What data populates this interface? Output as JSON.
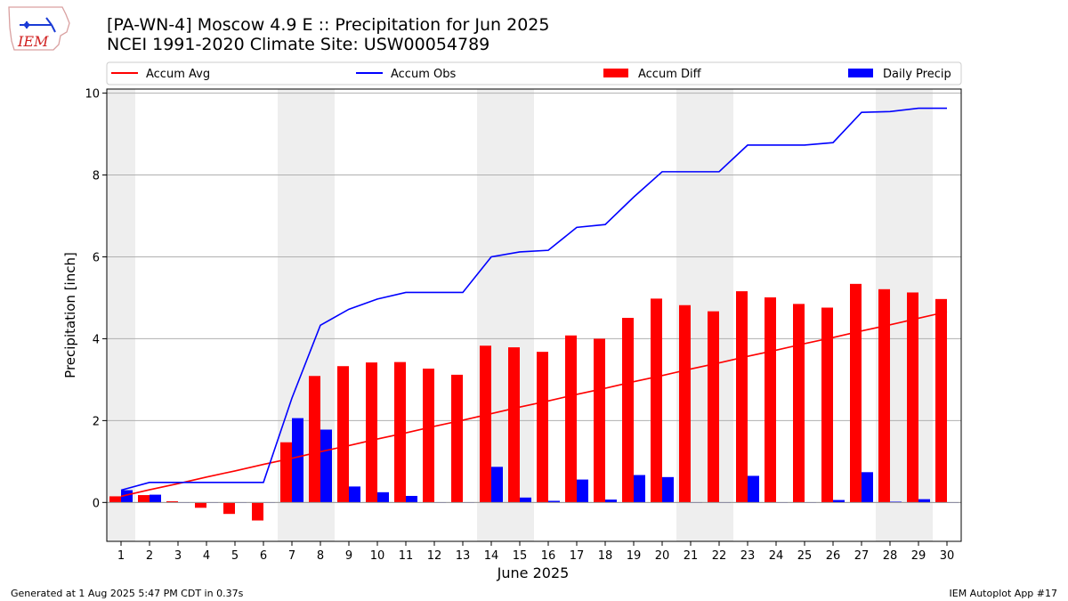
{
  "header": {
    "title_line1": "[PA-WN-4] Moscow 4.9 E :: Precipitation for Jun 2025",
    "title_line2": "NCEI 1991-2020 Climate Site: USW00054789",
    "logo_text": "IEM"
  },
  "footer": {
    "generated": "Generated at 1 Aug 2025 5:47 PM CDT in 0.37s",
    "app": "IEM Autoplot App #17"
  },
  "colors": {
    "avg": "#ff0000",
    "obs": "#0000ff",
    "diff": "#ff0000",
    "daily": "#0000ff",
    "weekend_shade": "#eeeeee",
    "grid": "#b0b0b0"
  },
  "chart_data": {
    "type": "bar",
    "xlabel": "June 2025",
    "ylabel": "Precipitation [inch]",
    "ylim": [
      -0.95,
      10.1
    ],
    "yticks": [
      0,
      2,
      4,
      6,
      8,
      10
    ],
    "grid": true,
    "legend_position": "top",
    "legend": [
      {
        "label": "Accum Avg",
        "kind": "line",
        "color": "#ff0000"
      },
      {
        "label": "Accum Obs",
        "kind": "line",
        "color": "#0000ff"
      },
      {
        "label": "Accum Diff",
        "kind": "bar",
        "color": "#ff0000"
      },
      {
        "label": "Daily Precip",
        "kind": "bar",
        "color": "#0000ff"
      }
    ],
    "x": [
      1,
      2,
      3,
      4,
      5,
      6,
      7,
      8,
      9,
      10,
      11,
      12,
      13,
      14,
      15,
      16,
      17,
      18,
      19,
      20,
      21,
      22,
      23,
      24,
      25,
      26,
      27,
      28,
      29,
      30
    ],
    "shaded_days": [
      [
        1,
        1
      ],
      [
        7,
        8
      ],
      [
        14,
        15
      ],
      [
        21,
        22
      ],
      [
        28,
        29
      ]
    ],
    "series": [
      {
        "name": "Accum Avg",
        "type": "line",
        "values": [
          0.15,
          0.31,
          0.46,
          0.62,
          0.77,
          0.93,
          1.08,
          1.24,
          1.39,
          1.55,
          1.7,
          1.86,
          2.01,
          2.17,
          2.33,
          2.48,
          2.64,
          2.79,
          2.95,
          3.1,
          3.26,
          3.41,
          3.57,
          3.72,
          3.88,
          4.03,
          4.19,
          4.34,
          4.5,
          4.66
        ]
      },
      {
        "name": "Accum Obs",
        "type": "line",
        "values": [
          0.3,
          0.49,
          0.49,
          0.49,
          0.49,
          0.49,
          2.55,
          4.33,
          4.72,
          4.97,
          5.13,
          5.13,
          5.13,
          6.0,
          6.12,
          6.16,
          6.72,
          6.79,
          7.46,
          8.08,
          8.08,
          8.08,
          8.73,
          8.73,
          8.73,
          8.79,
          9.53,
          9.55,
          9.63,
          9.63
        ]
      },
      {
        "name": "Accum Diff",
        "type": "bar",
        "values": [
          0.15,
          0.18,
          0.03,
          -0.13,
          -0.28,
          -0.44,
          1.47,
          3.09,
          3.33,
          3.42,
          3.43,
          3.27,
          3.12,
          3.83,
          3.79,
          3.68,
          4.08,
          4.0,
          4.51,
          4.98,
          4.82,
          4.67,
          5.16,
          5.01,
          4.85,
          4.76,
          5.34,
          5.21,
          5.13,
          4.97
        ]
      },
      {
        "name": "Daily Precip",
        "type": "bar",
        "values": [
          0.3,
          0.19,
          0.0,
          0.0,
          0.0,
          0.0,
          2.06,
          1.78,
          0.39,
          0.25,
          0.16,
          0.0,
          0.0,
          0.87,
          0.12,
          0.04,
          0.56,
          0.07,
          0.67,
          0.62,
          0.0,
          0.0,
          0.65,
          0.0,
          0.0,
          0.06,
          0.74,
          0.02,
          0.08,
          0.0
        ]
      }
    ]
  }
}
